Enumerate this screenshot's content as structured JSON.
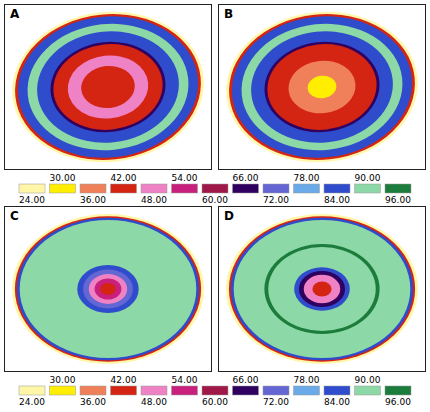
{
  "chart_data": {
    "type": "contour",
    "panels": [
      {
        "label": "A",
        "regions": [
          {
            "level": 24,
            "radius": 1.0
          },
          {
            "level": 42,
            "radius": 0.97
          },
          {
            "level": 84,
            "radius": 0.94
          },
          {
            "level": 90,
            "radius": 0.84
          },
          {
            "level": 84,
            "radius": 0.74
          },
          {
            "level": 66,
            "radius": 0.6
          },
          {
            "level": 42,
            "radius": 0.57
          },
          {
            "level": 48,
            "radius": 0.42
          },
          {
            "level": 42,
            "radius": 0.28
          }
        ]
      },
      {
        "label": "B",
        "regions": [
          {
            "level": 24,
            "radius": 1.0
          },
          {
            "level": 42,
            "radius": 0.97
          },
          {
            "level": 84,
            "radius": 0.94
          },
          {
            "level": 90,
            "radius": 0.84
          },
          {
            "level": 84,
            "radius": 0.74
          },
          {
            "level": 66,
            "radius": 0.6
          },
          {
            "level": 42,
            "radius": 0.57
          },
          {
            "level": 36,
            "radius": 0.35
          },
          {
            "level": 30,
            "radius": 0.15
          }
        ]
      },
      {
        "label": "C",
        "regions": [
          {
            "level": 24,
            "radius": 1.0
          },
          {
            "level": 42,
            "radius": 0.97
          },
          {
            "level": 84,
            "radius": 0.95
          },
          {
            "level": 90,
            "radius": 0.92
          },
          {
            "level": 84,
            "radius": 0.32
          },
          {
            "level": 72,
            "radius": 0.26
          },
          {
            "level": 48,
            "radius": 0.2
          },
          {
            "level": 54,
            "radius": 0.14
          },
          {
            "level": 42,
            "radius": 0.08
          }
        ]
      },
      {
        "label": "D",
        "regions": [
          {
            "level": 24,
            "radius": 1.0
          },
          {
            "level": 42,
            "radius": 0.97
          },
          {
            "level": 84,
            "radius": 0.95
          },
          {
            "level": 90,
            "radius": 0.92
          },
          {
            "level": 96,
            "radius": 0.6
          },
          {
            "level": 90,
            "radius": 0.56
          },
          {
            "level": 84,
            "radius": 0.29
          },
          {
            "level": 66,
            "radius": 0.24
          },
          {
            "level": 48,
            "radius": 0.19
          },
          {
            "level": 42,
            "radius": 0.1
          }
        ]
      }
    ],
    "color_scale": {
      "range": [
        24,
        96
      ],
      "ticks": [
        {
          "value": 24,
          "label": "24.00"
        },
        {
          "value": 30,
          "label": "30.00"
        },
        {
          "value": 36,
          "label": "36.00"
        },
        {
          "value": 42,
          "label": "42.00"
        },
        {
          "value": 48,
          "label": "48.00"
        },
        {
          "value": 54,
          "label": "54.00"
        },
        {
          "value": 60,
          "label": "60.00"
        },
        {
          "value": 66,
          "label": "66.00"
        },
        {
          "value": 72,
          "label": "72.00"
        },
        {
          "value": 78,
          "label": "78.00"
        },
        {
          "value": 84,
          "label": "84.00"
        },
        {
          "value": 90,
          "label": "90.00"
        },
        {
          "value": 96,
          "label": "96.00"
        }
      ],
      "colors": [
        "#fff6a8",
        "#ffee00",
        "#f0805a",
        "#d42412",
        "#ee82c4",
        "#c8207c",
        "#a01848",
        "#300060",
        "#6466d4",
        "#6aaae8",
        "#2e4ccc",
        "#8cd8a6",
        "#1c7c3c"
      ]
    }
  }
}
